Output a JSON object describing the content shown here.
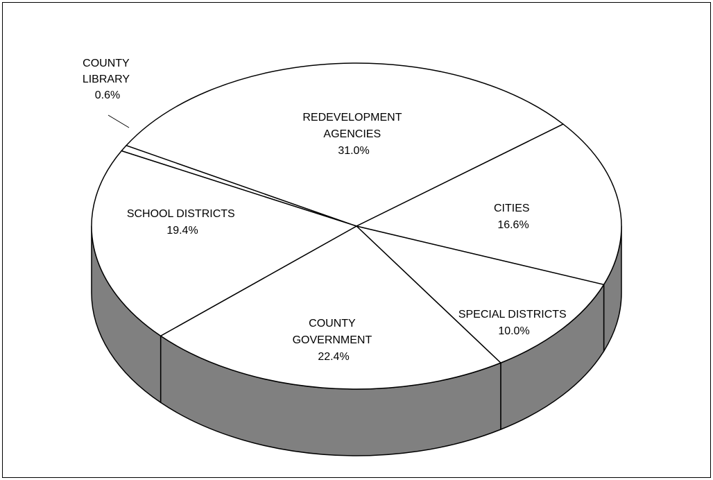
{
  "chart_data": {
    "type": "pie",
    "style": "3d",
    "slices": [
      {
        "name": "COUNTY LIBRARY",
        "label_lines": [
          "COUNTY",
          "LIBRARY"
        ],
        "percent_label": "0.6%",
        "value": 0.6
      },
      {
        "name": "REDEVELOPMENT AGENCIES",
        "label_lines": [
          "REDEVELOPMENT",
          "AGENCIES"
        ],
        "percent_label": "31.0%",
        "value": 31.0
      },
      {
        "name": "CITIES",
        "label_lines": [
          "CITIES"
        ],
        "percent_label": "16.6%",
        "value": 16.6
      },
      {
        "name": "SPECIAL DISTRICTS",
        "label_lines": [
          "SPECIAL DISTRICTS"
        ],
        "percent_label": "10.0%",
        "value": 10.0
      },
      {
        "name": "COUNTY GOVERNMENT",
        "label_lines": [
          "COUNTY",
          "GOVERNMENT"
        ],
        "percent_label": "22.4%",
        "value": 22.4
      },
      {
        "name": "SCHOOL DISTRICTS",
        "label_lines": [
          "SCHOOL DISTRICTS"
        ],
        "percent_label": "19.4%",
        "value": 19.4
      }
    ],
    "colors": {
      "top": "#ffffff",
      "side": "#808080",
      "stroke": "#000000",
      "frame": "#000000"
    },
    "legend": "none",
    "grid": false
  }
}
